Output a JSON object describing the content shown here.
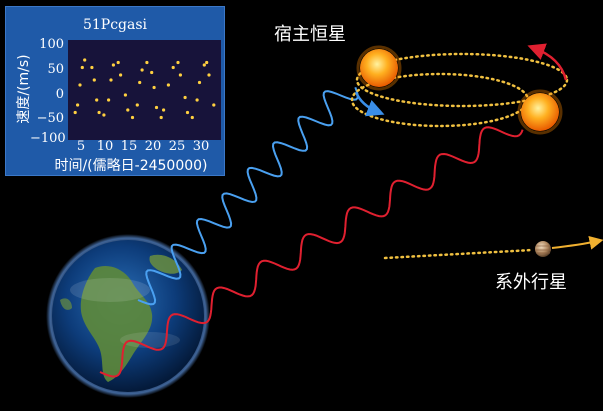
{
  "labels": {
    "host_star": "宿主恒星",
    "exoplanet": "系外行星"
  },
  "inset": {
    "title": "51Pcgasi",
    "ylabel": "速度/(m/s)",
    "xlabel": "时间/(儒略日-2450000)",
    "y_ticks": [
      "100",
      "50",
      "0",
      "−50",
      "−100"
    ],
    "x_ticks": [
      "5",
      "10",
      "15",
      "20",
      "25",
      "30"
    ]
  },
  "chart_data": {
    "type": "scatter",
    "title": "51Pcgasi",
    "xlabel": "时间/(儒略日-2450000)",
    "ylabel": "速度/(m/s)",
    "xlim": [
      2,
      34
    ],
    "ylim": [
      -100,
      100
    ],
    "points": [
      [
        3.5,
        -45
      ],
      [
        4.0,
        -30
      ],
      [
        4.5,
        10
      ],
      [
        5.0,
        45
      ],
      [
        5.5,
        60
      ],
      [
        7.0,
        45
      ],
      [
        7.5,
        20
      ],
      [
        8.0,
        -20
      ],
      [
        8.5,
        -45
      ],
      [
        9.5,
        -50
      ],
      [
        10.5,
        -20
      ],
      [
        11.0,
        20
      ],
      [
        11.5,
        50
      ],
      [
        12.5,
        55
      ],
      [
        13.0,
        30
      ],
      [
        14.0,
        -10
      ],
      [
        14.5,
        -40
      ],
      [
        15.5,
        -55
      ],
      [
        16.5,
        -30
      ],
      [
        17.0,
        15
      ],
      [
        17.5,
        40
      ],
      [
        18.5,
        55
      ],
      [
        19.5,
        35
      ],
      [
        20.0,
        5
      ],
      [
        20.5,
        -35
      ],
      [
        21.5,
        -55
      ],
      [
        22.0,
        -40
      ],
      [
        23.0,
        10
      ],
      [
        24.0,
        45
      ],
      [
        25.0,
        55
      ],
      [
        25.5,
        30
      ],
      [
        26.5,
        -15
      ],
      [
        27.0,
        -45
      ],
      [
        28.0,
        -55
      ],
      [
        29.0,
        -20
      ],
      [
        29.5,
        15
      ],
      [
        30.5,
        50
      ],
      [
        31.0,
        55
      ],
      [
        31.5,
        30
      ],
      [
        32.5,
        -30
      ]
    ],
    "series_color": "#ffd040",
    "grid": false
  },
  "colors": {
    "blue_wave": "#4aa0f0",
    "red_wave": "#e02030",
    "orbit": "#f0c040",
    "arrow_red": "#e02030",
    "arrow_blue": "#3a8ee8",
    "arrow_planet": "#f0b030"
  }
}
